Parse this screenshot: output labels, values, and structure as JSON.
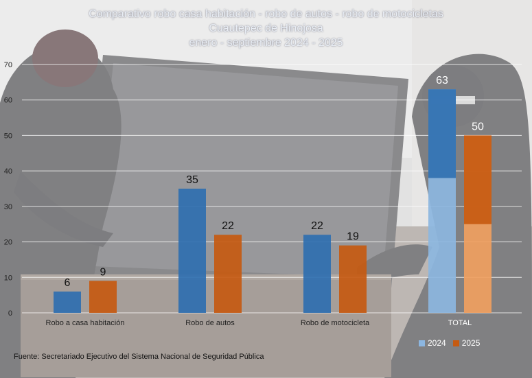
{
  "colors": {
    "series_2024": "#2f6fb0",
    "series_2025": "#c55a11",
    "series_2024_light": "#8cb6e0",
    "series_2025_light": "#f0a060"
  },
  "footer": {
    "source": "Fuente:  Secretariado Ejecutivo del Sistema Nacional de Seguridad Pública"
  },
  "chart_data": {
    "type": "bar",
    "title": "Comparativo robo casa habitación - robo de autos - robo de motocicletas",
    "subtitle_1": "Cuautepec de Hinojosa",
    "subtitle_2": "enero - septiembre 2024 - 2025",
    "categories": [
      "Robo a casa habitación",
      "Robo de autos",
      "Robo de motocicleta",
      "TOTAL"
    ],
    "series": [
      {
        "name": "2024",
        "values": [
          6,
          35,
          22,
          63
        ]
      },
      {
        "name": "2025",
        "values": [
          9,
          22,
          19,
          50
        ]
      }
    ],
    "y_ticks": [
      "0",
      "10",
      "20",
      "30",
      "40",
      "50",
      "60",
      "70"
    ],
    "ylim": [
      0,
      70
    ],
    "grid": true,
    "legend_position": "bottom-right",
    "xlabel": "",
    "ylabel": ""
  }
}
